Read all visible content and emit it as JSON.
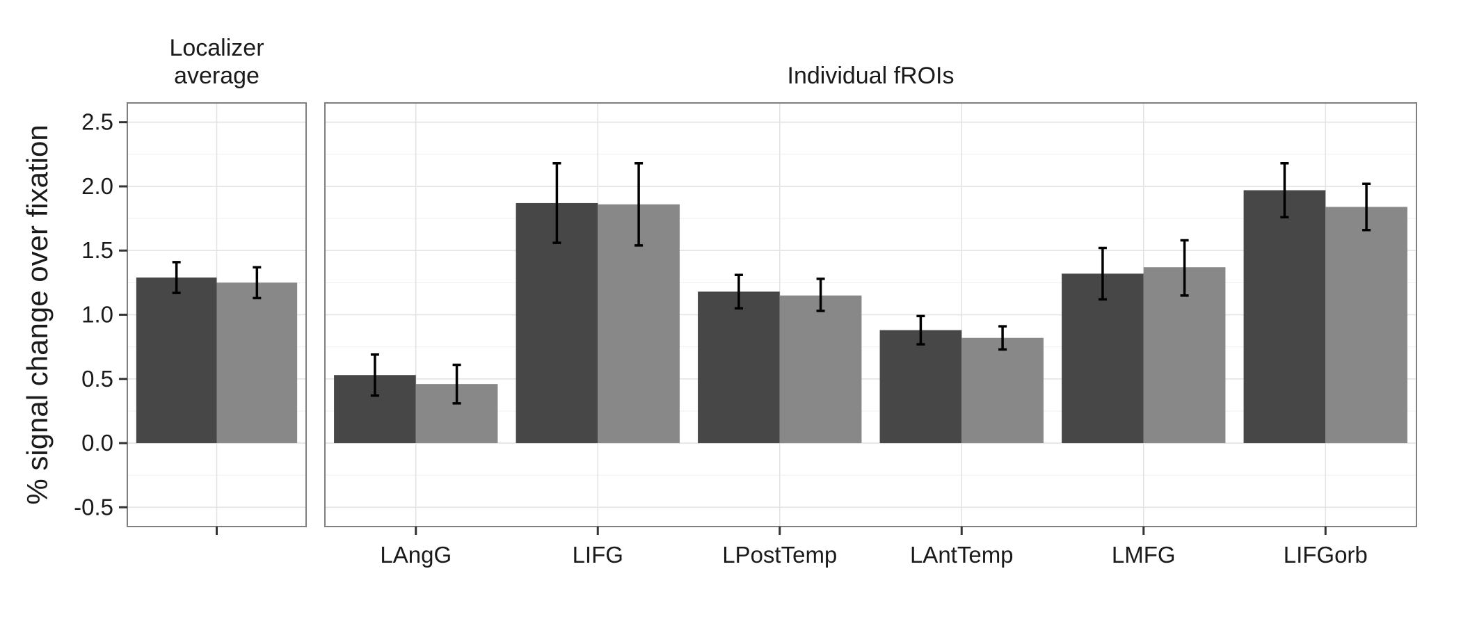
{
  "chart_data": {
    "type": "bar",
    "ylabel": "% signal change over fixation",
    "ylim": [
      -0.65,
      2.65
    ],
    "yticks": [
      -0.5,
      0.0,
      0.5,
      1.0,
      1.5,
      2.0,
      2.5
    ],
    "ytick_labels": [
      "-0.5",
      "0.0",
      "0.5",
      "1.0",
      "1.5",
      "2.0",
      "2.5"
    ],
    "grid": true,
    "legend": "none",
    "series_colors": [
      "#474747",
      "#888888"
    ],
    "panels": [
      {
        "title_lines": [
          "Localizer",
          "average"
        ],
        "categories": [
          ""
        ],
        "series": [
          {
            "values": [
              1.29
            ],
            "err_low": [
              1.17
            ],
            "err_high": [
              1.41
            ]
          },
          {
            "values": [
              1.25
            ],
            "err_low": [
              1.13
            ],
            "err_high": [
              1.37
            ]
          }
        ]
      },
      {
        "title_lines": [
          "Individual fROIs"
        ],
        "categories": [
          "LAngG",
          "LIFG",
          "LPostTemp",
          "LAntTemp",
          "LMFG",
          "LIFGorb"
        ],
        "series": [
          {
            "values": [
              0.53,
              1.87,
              1.18,
              0.88,
              1.32,
              1.97
            ],
            "err_low": [
              0.37,
              1.56,
              1.05,
              0.77,
              1.12,
              1.76
            ],
            "err_high": [
              0.69,
              2.18,
              1.31,
              0.99,
              1.52,
              2.18
            ]
          },
          {
            "values": [
              0.46,
              1.86,
              1.15,
              0.82,
              1.37,
              1.84
            ],
            "err_low": [
              0.31,
              1.54,
              1.03,
              0.73,
              1.15,
              1.66
            ],
            "err_high": [
              0.61,
              2.18,
              1.28,
              0.91,
              1.58,
              2.02
            ]
          }
        ]
      }
    ]
  }
}
